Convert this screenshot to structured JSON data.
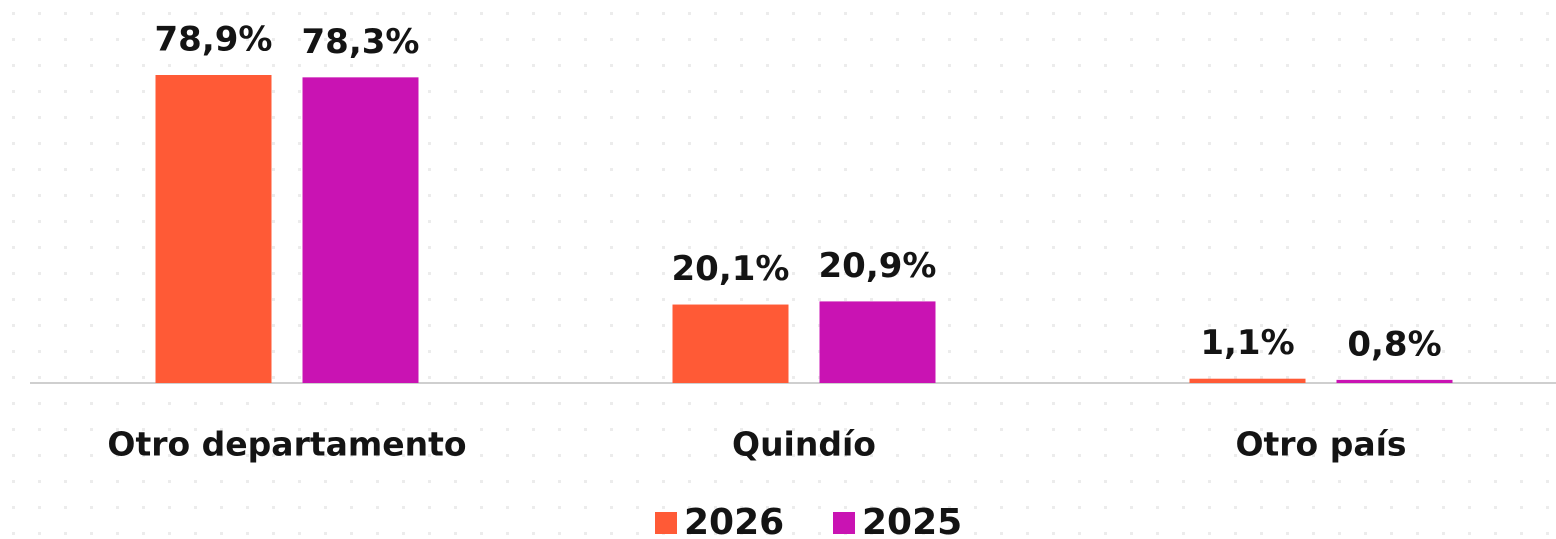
{
  "chart_data": {
    "type": "bar",
    "categories": [
      "Otro departamento",
      "Quindío",
      "Otro país"
    ],
    "series": [
      {
        "name": "2026",
        "color": "#FF5A36",
        "values": [
          78.9,
          20.1,
          1.1
        ],
        "value_labels": [
          "78,9%",
          "20,1%",
          "1,1%"
        ]
      },
      {
        "name": "2025",
        "color": "#C913B3",
        "values": [
          78.3,
          20.9,
          0.8
        ],
        "value_labels": [
          "78,3%",
          "20,9%",
          "0,8%"
        ]
      }
    ]
  }
}
